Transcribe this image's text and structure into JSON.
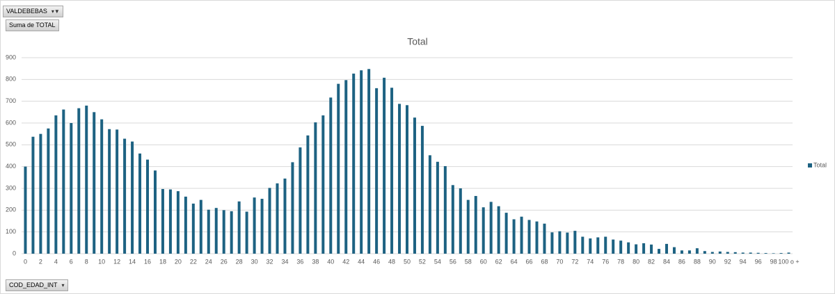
{
  "filter_label": "VALDEBEBAS",
  "value_field": "Suma de TOTAL",
  "axis_field": "COD_EDAD_INT",
  "chart_data": {
    "type": "bar",
    "title": "Total",
    "categories": [
      "0",
      null,
      "2",
      null,
      "4",
      null,
      "6",
      null,
      "8",
      null,
      "10",
      null,
      "12",
      null,
      "14",
      null,
      "16",
      null,
      "18",
      null,
      "20",
      null,
      "22",
      null,
      "24",
      null,
      "26",
      null,
      "28",
      null,
      "30",
      null,
      "32",
      null,
      "34",
      null,
      "36",
      null,
      "38",
      null,
      "40",
      null,
      "42",
      null,
      "44",
      null,
      "46",
      null,
      "48",
      null,
      "50",
      null,
      "52",
      null,
      "54",
      null,
      "56",
      null,
      "58",
      null,
      "60",
      null,
      "62",
      null,
      "64",
      null,
      "66",
      null,
      "68",
      null,
      "70",
      null,
      "72",
      null,
      "74",
      null,
      "76",
      null,
      "78",
      null,
      "80",
      null,
      "82",
      null,
      "84",
      null,
      "86",
      null,
      "88",
      null,
      "90",
      null,
      "92",
      null,
      "94",
      null,
      "96",
      null,
      "98",
      null,
      "100 o +"
    ],
    "series": [
      {
        "name": "Total",
        "color": "#1d6282",
        "values": [
          400,
          537,
          550,
          575,
          635,
          662,
          600,
          668,
          680,
          650,
          617,
          572,
          570,
          528,
          515,
          460,
          432,
          382,
          297,
          295,
          287,
          262,
          230,
          247,
          202,
          210,
          200,
          195,
          240,
          193,
          258,
          252,
          302,
          323,
          345,
          420,
          488,
          543,
          603,
          635,
          717,
          780,
          797,
          827,
          842,
          848,
          760,
          808,
          762,
          688,
          682,
          625,
          587,
          452,
          422,
          402,
          315,
          300,
          247,
          265,
          213,
          238,
          218,
          188,
          158,
          170,
          155,
          148,
          138,
          98,
          103,
          97,
          105,
          78,
          70,
          75,
          78,
          65,
          60,
          52,
          43,
          48,
          42,
          22,
          45,
          30,
          15,
          15,
          25,
          12,
          8,
          10,
          8,
          7,
          5,
          5,
          4,
          3,
          2,
          3,
          5
        ]
      }
    ],
    "ylim": [
      0,
      900
    ],
    "yticks": [
      0,
      100,
      200,
      300,
      400,
      500,
      600,
      700,
      800,
      900
    ],
    "grid": true,
    "legend": "right"
  }
}
